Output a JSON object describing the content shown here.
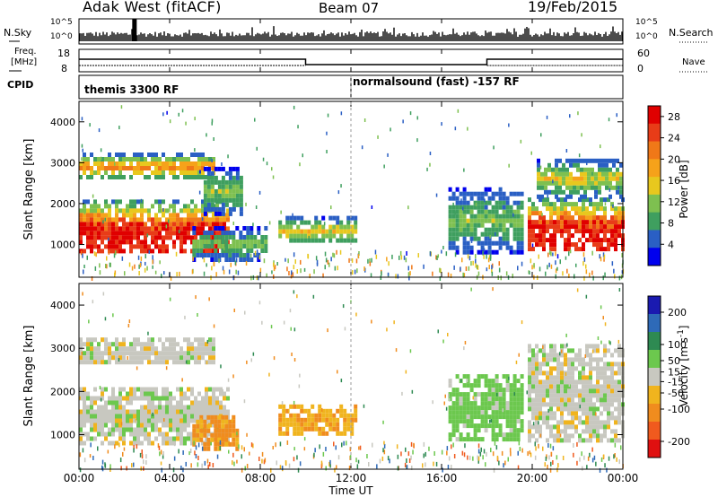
{
  "header": {
    "radar": "Adak West (fitACF)",
    "beam": "Beam 07",
    "date": "19/Feb/2015"
  },
  "top_panels": {
    "nsky_label": "N.Sky",
    "nsky_ticks": [
      "10^5",
      "10^0"
    ],
    "nsearch_label": "N.Search",
    "nsearch_ticks": [
      "10^5",
      "10^0"
    ],
    "freq_label": "Freq.",
    "freq_unit": "[MHz]",
    "freq_ticks": [
      "18",
      "8"
    ],
    "nave_label": "Nave",
    "nave_ticks": [
      "60",
      "0"
    ],
    "cpid_label": "CPID",
    "cpid_segments": [
      "themis 3300 RF",
      "normalsound (fast) -157 RF"
    ]
  },
  "colors": {
    "power_scale": [
      "#0000ee",
      "#2a5fc4",
      "#3f9f5f",
      "#7ec050",
      "#e8c81e",
      "#f6a21a",
      "#f07818",
      "#e83c18",
      "#e00000"
    ],
    "velocity_scale": [
      "#1a1ab0",
      "#2e6ab8",
      "#2e8a52",
      "#6cc84e",
      "#c8c8c0",
      "#f0b41e",
      "#f08c1e",
      "#f05a1e",
      "#e01010"
    ]
  },
  "chart_data": [
    {
      "type": "heatmap",
      "panel": "power",
      "ylabel": "Slant Range [km]",
      "xlim": [
        "00:00",
        "24:00"
      ],
      "ylim": [
        200,
        4500
      ],
      "yticks": [
        1000,
        2000,
        3000,
        4000
      ],
      "colorbar_label": "Power [dB]",
      "colorbar_ticks": [
        4,
        8,
        12,
        16,
        20,
        24,
        28
      ],
      "colorbar_range": [
        0,
        30
      ],
      "echo_bands": [
        {
          "t0": 0.0,
          "t1": 6.5,
          "r0": 850,
          "r1": 2100,
          "peak_db": 28
        },
        {
          "t0": 0.0,
          "t1": 6.0,
          "r0": 2650,
          "r1": 3250,
          "peak_db": 22
        },
        {
          "t0": 5.5,
          "t1": 7.2,
          "r0": 1800,
          "r1": 2900,
          "peak_db": 12
        },
        {
          "t0": 5.0,
          "t1": 8.2,
          "r0": 650,
          "r1": 1450,
          "peak_db": 12
        },
        {
          "t0": 8.8,
          "t1": 12.2,
          "r0": 1050,
          "r1": 1700,
          "peak_db": 16
        },
        {
          "t0": 16.3,
          "t1": 19.5,
          "r0": 850,
          "r1": 2400,
          "peak_db": 12
        },
        {
          "t0": 19.8,
          "t1": 24.0,
          "r0": 900,
          "r1": 2150,
          "peak_db": 28
        },
        {
          "t0": 20.2,
          "t1": 24.0,
          "r0": 2200,
          "r1": 3100,
          "peak_db": 16
        }
      ]
    },
    {
      "type": "heatmap",
      "panel": "velocity",
      "ylabel": "Slant Range [km]",
      "xlabel": "Time UT",
      "xlim": [
        "00:00",
        "24:00"
      ],
      "xticks": [
        "00:00",
        "04:00",
        "08:00",
        "12:00",
        "16:00",
        "20:00",
        "00:00"
      ],
      "ylim": [
        200,
        4500
      ],
      "yticks": [
        1000,
        2000,
        3000,
        4000
      ],
      "colorbar_label": "Velocity [m s^-1]",
      "colorbar_ticks": [
        200,
        100,
        50,
        15,
        -15,
        -50,
        -100,
        -200
      ],
      "colorbar_range": [
        -250,
        250
      ],
      "echo_bands": [
        {
          "t0": 0.0,
          "t1": 6.5,
          "r0": 850,
          "r1": 2100,
          "velocity": 0
        },
        {
          "t0": 0.0,
          "t1": 6.0,
          "r0": 2650,
          "r1": 3250,
          "velocity": 0
        },
        {
          "t0": 5.0,
          "t1": 7.0,
          "r0": 700,
          "r1": 1450,
          "velocity": -60
        },
        {
          "t0": 8.8,
          "t1": 12.2,
          "r0": 1050,
          "r1": 1700,
          "velocity": -45
        },
        {
          "t0": 16.3,
          "t1": 19.5,
          "r0": 850,
          "r1": 2400,
          "velocity": 30
        },
        {
          "t0": 19.8,
          "t1": 24.0,
          "r0": 900,
          "r1": 3100,
          "velocity": 0
        }
      ]
    }
  ]
}
